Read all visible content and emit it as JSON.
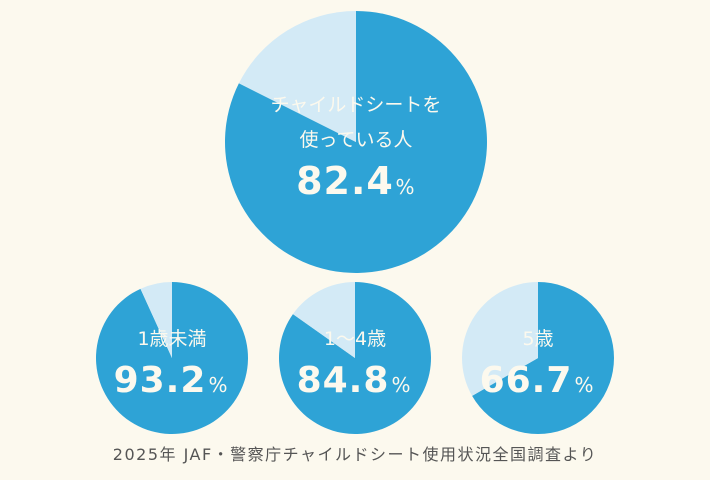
{
  "colors": {
    "used": "#2ea3d6",
    "unused": "#d3eaf6",
    "text": "#fcf9ee",
    "source": "#555555"
  },
  "chart_data": [
    {
      "type": "pie",
      "title": "チャイルドシートを使っている人",
      "title_lines": [
        "チャイルドシートを",
        "使っている人"
      ],
      "value_label": "82.4",
      "unit": "%",
      "values": [
        82.4,
        17.6
      ]
    },
    {
      "type": "pie",
      "title": "1歳未満",
      "value_label": "93.2",
      "unit": "%",
      "values": [
        93.2,
        6.8
      ]
    },
    {
      "type": "pie",
      "title": "1～4歳",
      "value_label": "84.8",
      "unit": "%",
      "values": [
        84.8,
        15.2
      ]
    },
    {
      "type": "pie",
      "title": "5歳",
      "value_label": "66.7",
      "unit": "%",
      "values": [
        66.7,
        33.3
      ]
    }
  ],
  "source": "2025年 JAF・警察庁チャイルドシート使用状況全国調査より"
}
